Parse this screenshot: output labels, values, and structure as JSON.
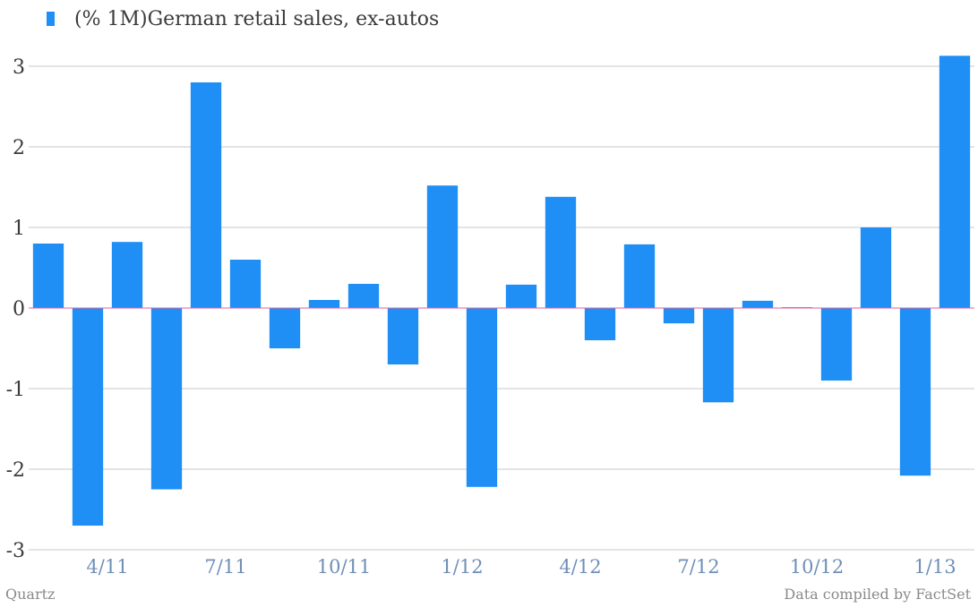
{
  "legend": {
    "label": "(% 1M)German retail sales, ex-autos"
  },
  "footer": {
    "source_left": "Quartz",
    "source_right": "Data compiled by FactSet"
  },
  "colors": {
    "bar": "#1f8ff5",
    "grid": "#c8c8c8",
    "zero_line": "#e0609c",
    "y_tick": "#3a3a3a",
    "x_tick": "#6f8fb8"
  },
  "chart_data": {
    "type": "bar",
    "title": "",
    "xlabel": "",
    "ylabel": "",
    "ylim": [
      -3,
      3
    ],
    "y_ticks": [
      3,
      2,
      1,
      0,
      -1,
      -2,
      -3
    ],
    "y_tick_labels": [
      "3",
      "2",
      "1",
      "0",
      "-1",
      "-2",
      "-3"
    ],
    "x_tick_labels": [
      {
        "label": "4/11",
        "index": 1.5
      },
      {
        "label": "7/11",
        "index": 4.5
      },
      {
        "label": "10/11",
        "index": 7.5
      },
      {
        "label": "1/12",
        "index": 10.5
      },
      {
        "label": "4/12",
        "index": 13.5
      },
      {
        "label": "7/12",
        "index": 16.5
      },
      {
        "label": "10/12",
        "index": 19.5
      },
      {
        "label": "1/13",
        "index": 22.5
      }
    ],
    "grid": true,
    "legend_position": "top-left",
    "series": [
      {
        "name": "(% 1M)German retail sales, ex-autos",
        "values": [
          0.8,
          -2.7,
          0.82,
          -2.25,
          2.8,
          0.6,
          -0.5,
          0.1,
          0.3,
          -0.7,
          1.52,
          -2.22,
          0.29,
          1.38,
          -0.4,
          0.79,
          -0.19,
          -1.17,
          0.09,
          0.01,
          -0.9,
          1.0,
          -2.08,
          3.13
        ]
      }
    ]
  }
}
